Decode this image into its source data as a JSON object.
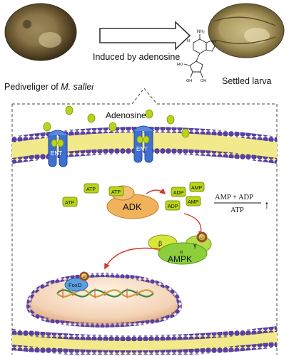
{
  "header": {
    "left_label_prefix": "Pediveliger of ",
    "left_label_species": "M. sallei",
    "arrow_label": "Induced by adenosine",
    "right_label": "Settled larva"
  },
  "cell": {
    "adenosine_label": "Adenosine",
    "transporter_label": "ENT",
    "atp_label": "ATP",
    "adp_label": "ADP",
    "amp_label": "AMP",
    "kinase_label": "ADK",
    "ratio_numerator": "AMP + ADP",
    "ratio_denominator": "ATP",
    "ratio_trend": "↑",
    "ampk_label": "AMPK",
    "alpha_label": "α",
    "beta_label": "β",
    "gamma_label": "γ",
    "phospho_label": "P",
    "foxo_label": "FoxO"
  },
  "colors": {
    "membrane_purple": "#5b3fa8",
    "membrane_yellow": "#f2e98a",
    "ent_blue": "#3f6fd0",
    "nucleotide_green": "#b9d31a",
    "adk_orange": "#f0b25b",
    "ampk_green": "#8ccf3a",
    "arrow_red": "#d23a2a"
  }
}
